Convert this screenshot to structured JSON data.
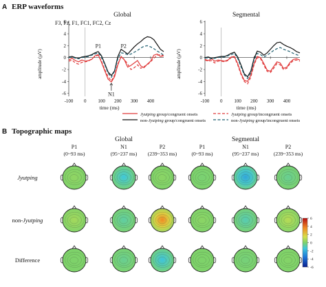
{
  "figure": {
    "section_a": {
      "letter": "A",
      "title": "ERP waveforms"
    },
    "section_b": {
      "letter": "B",
      "title": "Topographic maps"
    }
  },
  "chart_data": [
    {
      "type": "line",
      "title": "Global",
      "annotation": "F3, Fz, F1, FC1, FC2, Cz",
      "xlabel": "time (ms)",
      "ylabel": "amplitude (µV)",
      "xlim": [
        -100,
        480
      ],
      "ylim": [
        -6.5,
        6.2
      ],
      "xticks": [
        -100,
        0,
        100,
        200,
        300,
        400
      ],
      "yticks": [
        6,
        4,
        2,
        0,
        -2,
        -4,
        -6
      ],
      "peak_labels": [
        {
          "text": "P1",
          "x": 80,
          "y": 1.4
        },
        {
          "text": "P2",
          "x": 235,
          "y": 1.4
        },
        {
          "text": "N1",
          "x": 160,
          "y": -5.2,
          "arrow": true
        }
      ],
      "x": [
        -100,
        -80,
        -60,
        -40,
        -20,
        0,
        20,
        40,
        60,
        80,
        100,
        120,
        140,
        160,
        180,
        200,
        220,
        240,
        260,
        280,
        300,
        320,
        340,
        360,
        380,
        400,
        420,
        440,
        460,
        480
      ],
      "series": [
        {
          "name": "Jyutping group/congruent onsets",
          "color": "#e03a3a",
          "dash": "solid",
          "values": [
            -0.4,
            -0.1,
            -0.5,
            -0.7,
            -0.4,
            -0.6,
            -0.5,
            -0.3,
            0.3,
            0.5,
            -0.8,
            -2.2,
            -3.6,
            -4.1,
            -3.2,
            -1.2,
            0.2,
            -0.4,
            -1.6,
            -1.3,
            -0.9,
            -0.5,
            -1.4,
            -1.7,
            -1.1,
            -0.6,
            0.4,
            0.6,
            0.2,
            0.3
          ]
        },
        {
          "name": "Jyutping group/incongruent onsets",
          "color": "#e03a3a",
          "dash": "dashed",
          "values": [
            -0.6,
            -0.4,
            -0.9,
            -1.1,
            -0.8,
            -0.7,
            -0.6,
            -0.2,
            0.2,
            0.4,
            -0.6,
            -2.0,
            -3.2,
            -3.9,
            -2.9,
            -1.0,
            0.1,
            -0.3,
            -1.1,
            -2.0,
            -1.7,
            -1.2,
            -1.8,
            -1.5,
            -1.2,
            -0.7,
            -0.1,
            0.4,
            0.5,
            0.3
          ]
        },
        {
          "name": "non-Jyutping group/congruent onsets",
          "color": "#111111",
          "dash": "solid",
          "values": [
            0.1,
            0.2,
            0.0,
            -0.1,
            0.1,
            0.2,
            0.3,
            0.5,
            0.8,
            1.0,
            0.3,
            -1.0,
            -2.4,
            -3.0,
            -2.2,
            0.2,
            1.4,
            1.0,
            0.6,
            1.2,
            1.8,
            2.3,
            2.7,
            3.2,
            3.5,
            3.4,
            3.0,
            2.2,
            1.4,
            1.0
          ]
        },
        {
          "name": "non-Jyutping group/incongruent onsets",
          "color": "#1f5f70",
          "dash": "dashed",
          "values": [
            0.0,
            0.1,
            -0.1,
            -0.2,
            0.0,
            0.1,
            0.2,
            0.4,
            0.6,
            0.8,
            0.1,
            -1.2,
            -2.6,
            -3.3,
            -2.3,
            -0.2,
            0.8,
            0.7,
            0.5,
            0.6,
            0.9,
            1.2,
            1.6,
            1.9,
            2.0,
            1.8,
            1.5,
            1.1,
            0.8,
            0.4
          ]
        }
      ]
    },
    {
      "type": "line",
      "title": "Segmental",
      "xlabel": "time (ms)",
      "ylabel": "amplitude (µV)",
      "xlim": [
        -100,
        480
      ],
      "ylim": [
        -6.5,
        6.2
      ],
      "xticks": [
        -100,
        0,
        100,
        200,
        300,
        400
      ],
      "yticks": [
        6,
        4,
        2,
        0,
        -2,
        -4,
        -6
      ],
      "x": [
        -100,
        -80,
        -60,
        -40,
        -20,
        0,
        20,
        40,
        60,
        80,
        100,
        120,
        140,
        160,
        180,
        200,
        220,
        240,
        260,
        280,
        300,
        320,
        340,
        360,
        380,
        400,
        420,
        440,
        460,
        480
      ],
      "series": [
        {
          "name": "Jyutping group/congruent onsets",
          "color": "#e03a3a",
          "dash": "solid",
          "values": [
            -0.3,
            -0.5,
            -0.2,
            -0.6,
            -0.4,
            -0.5,
            -0.6,
            -0.4,
            0.1,
            0.2,
            -1.0,
            -2.6,
            -3.8,
            -4.0,
            -3.0,
            -1.0,
            0.2,
            0.0,
            -1.0,
            -2.1,
            -2.3,
            -1.5,
            -0.7,
            -0.9,
            -1.8,
            -1.6,
            -0.8,
            -0.3,
            -0.2,
            -0.4
          ]
        },
        {
          "name": "Jyutping group/incongruent onsets",
          "color": "#e03a3a",
          "dash": "dashed",
          "values": [
            -0.4,
            -0.6,
            -0.5,
            -0.9,
            -0.6,
            -0.6,
            -0.7,
            -0.5,
            0.0,
            0.1,
            -1.2,
            -2.8,
            -4.0,
            -4.4,
            -3.3,
            -1.2,
            0.0,
            -0.2,
            -1.3,
            -2.3,
            -2.5,
            -1.8,
            -1.0,
            -1.2,
            -2.0,
            -1.8,
            -1.0,
            -0.5,
            -0.4,
            -0.6
          ]
        },
        {
          "name": "non-Jyutping group/congruent onsets",
          "color": "#111111",
          "dash": "solid",
          "values": [
            0.0,
            0.1,
            -0.1,
            0.0,
            0.1,
            0.2,
            0.2,
            0.4,
            0.7,
            0.9,
            0.1,
            -1.2,
            -2.7,
            -3.2,
            -2.3,
            -0.1,
            1.1,
            0.9,
            0.4,
            0.8,
            1.4,
            2.0,
            2.5,
            2.6,
            2.2,
            1.9,
            1.7,
            1.4,
            1.0,
            0.8
          ]
        },
        {
          "name": "non-Jyutping group/incongruent onsets",
          "color": "#1f5f70",
          "dash": "dashed",
          "values": [
            -0.1,
            0.0,
            -0.2,
            -0.1,
            0.0,
            0.1,
            0.1,
            0.3,
            0.5,
            0.7,
            -0.1,
            -1.5,
            -2.9,
            -3.5,
            -2.6,
            -0.4,
            0.7,
            0.5,
            0.1,
            0.4,
            0.8,
            1.2,
            1.5,
            1.7,
            1.4,
            1.2,
            1.0,
            0.7,
            0.5,
            0.3
          ]
        }
      ]
    },
    {
      "type": "heatmap",
      "title": "Topographic maps",
      "groups": [
        "Global",
        "Segmental"
      ],
      "windows": [
        {
          "name": "P1",
          "range": "(0~93 ms)"
        },
        {
          "name": "N1",
          "range": "(95~237 ms)"
        },
        {
          "name": "P2",
          "range": "(239~353 ms)"
        }
      ],
      "rows": [
        "Jyutping",
        "non-Jyutping",
        "Difference"
      ],
      "colorbar": {
        "min": -6,
        "max": 6,
        "ticks": [
          6,
          4,
          2,
          0,
          -2,
          -4,
          -6
        ]
      },
      "maps": [
        {
          "group": "Global",
          "row": "Jyutping",
          "window": "P1",
          "value": 0.3
        },
        {
          "group": "Global",
          "row": "Jyutping",
          "window": "N1",
          "value": -1.4
        },
        {
          "group": "Global",
          "row": "Jyutping",
          "window": "P2",
          "value": 0.2
        },
        {
          "group": "Global",
          "row": "non-Jyutping",
          "window": "P1",
          "value": 0.6
        },
        {
          "group": "Global",
          "row": "non-Jyutping",
          "window": "N1",
          "value": -0.7
        },
        {
          "group": "Global",
          "row": "non-Jyutping",
          "window": "P2",
          "value": 3.6
        },
        {
          "group": "Global",
          "row": "Difference",
          "window": "P1",
          "value": 0.0
        },
        {
          "group": "Global",
          "row": "Difference",
          "window": "N1",
          "value": -0.5
        },
        {
          "group": "Global",
          "row": "Difference",
          "window": "P2",
          "value": -1.5
        },
        {
          "group": "Segmental",
          "row": "Jyutping",
          "window": "P1",
          "value": -0.1
        },
        {
          "group": "Segmental",
          "row": "Jyutping",
          "window": "N1",
          "value": -2.3
        },
        {
          "group": "Segmental",
          "row": "Jyutping",
          "window": "P2",
          "value": -0.5
        },
        {
          "group": "Segmental",
          "row": "non-Jyutping",
          "window": "P1",
          "value": 0.2
        },
        {
          "group": "Segmental",
          "row": "non-Jyutping",
          "window": "N1",
          "value": -0.9
        },
        {
          "group": "Segmental",
          "row": "non-Jyutping",
          "window": "P2",
          "value": 0.9
        },
        {
          "group": "Segmental",
          "row": "Difference",
          "window": "P1",
          "value": 0.0
        },
        {
          "group": "Segmental",
          "row": "Difference",
          "window": "N1",
          "value": -0.2
        },
        {
          "group": "Segmental",
          "row": "Difference",
          "window": "P2",
          "value": 0.1
        }
      ]
    }
  ]
}
